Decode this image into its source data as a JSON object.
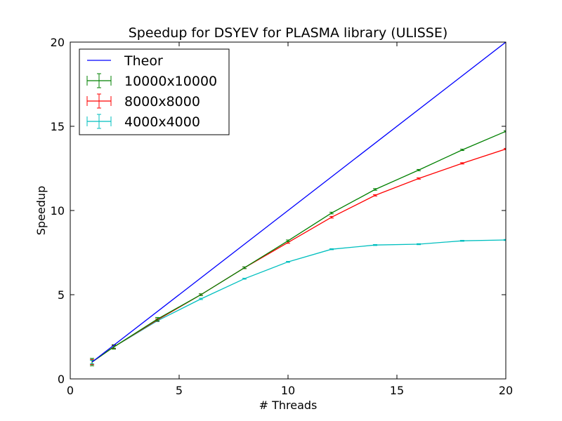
{
  "chart_data": {
    "type": "line",
    "title": "Speedup for DSYEV for PLASMA library (ULISSE)",
    "xlabel": "# Threads",
    "ylabel": "Speedup",
    "xlim": [
      0,
      20
    ],
    "ylim": [
      0,
      20
    ],
    "xticks": [
      0,
      5,
      10,
      15,
      20
    ],
    "yticks": [
      0,
      5,
      10,
      15,
      20
    ],
    "grid": false,
    "legend_position": "top-left",
    "series": [
      {
        "name": "Theor",
        "color": "#0000ff",
        "error_bars": false,
        "x": [
          1,
          20
        ],
        "y": [
          1,
          20
        ]
      },
      {
        "name": "10000x10000",
        "color": "#008000",
        "error_bars": true,
        "x": [
          1,
          2,
          4,
          6,
          8,
          10,
          12,
          14,
          16,
          18,
          20
        ],
        "y": [
          1.0,
          1.9,
          3.55,
          5.0,
          6.6,
          8.2,
          9.85,
          11.25,
          12.4,
          13.6,
          14.7
        ],
        "err": [
          0.22,
          0.13,
          0.1,
          0.05,
          0.05,
          0.05,
          0.05,
          0.05,
          0.04,
          0.04,
          0.04
        ]
      },
      {
        "name": "8000x8000",
        "color": "#ff0000",
        "error_bars": true,
        "x": [
          1,
          2,
          4,
          6,
          8,
          10,
          12,
          14,
          16,
          18,
          20
        ],
        "y": [
          1.0,
          1.9,
          3.5,
          5.0,
          6.6,
          8.1,
          9.6,
          10.9,
          11.9,
          12.8,
          13.65
        ],
        "err": [
          0.15,
          0.1,
          0.07,
          0.05,
          0.05,
          0.05,
          0.05,
          0.04,
          0.04,
          0.04,
          0.04
        ]
      },
      {
        "name": "4000x4000",
        "color": "#00bfbf",
        "error_bars": true,
        "x": [
          1,
          2,
          4,
          6,
          8,
          10,
          12,
          14,
          16,
          18,
          20
        ],
        "y": [
          1.0,
          1.9,
          3.45,
          4.75,
          5.95,
          6.95,
          7.7,
          7.95,
          8.0,
          8.2,
          8.25
        ],
        "err": [
          0.1,
          0.07,
          0.05,
          0.04,
          0.03,
          0.03,
          0.03,
          0.03,
          0.03,
          0.03,
          0.03
        ]
      }
    ]
  }
}
